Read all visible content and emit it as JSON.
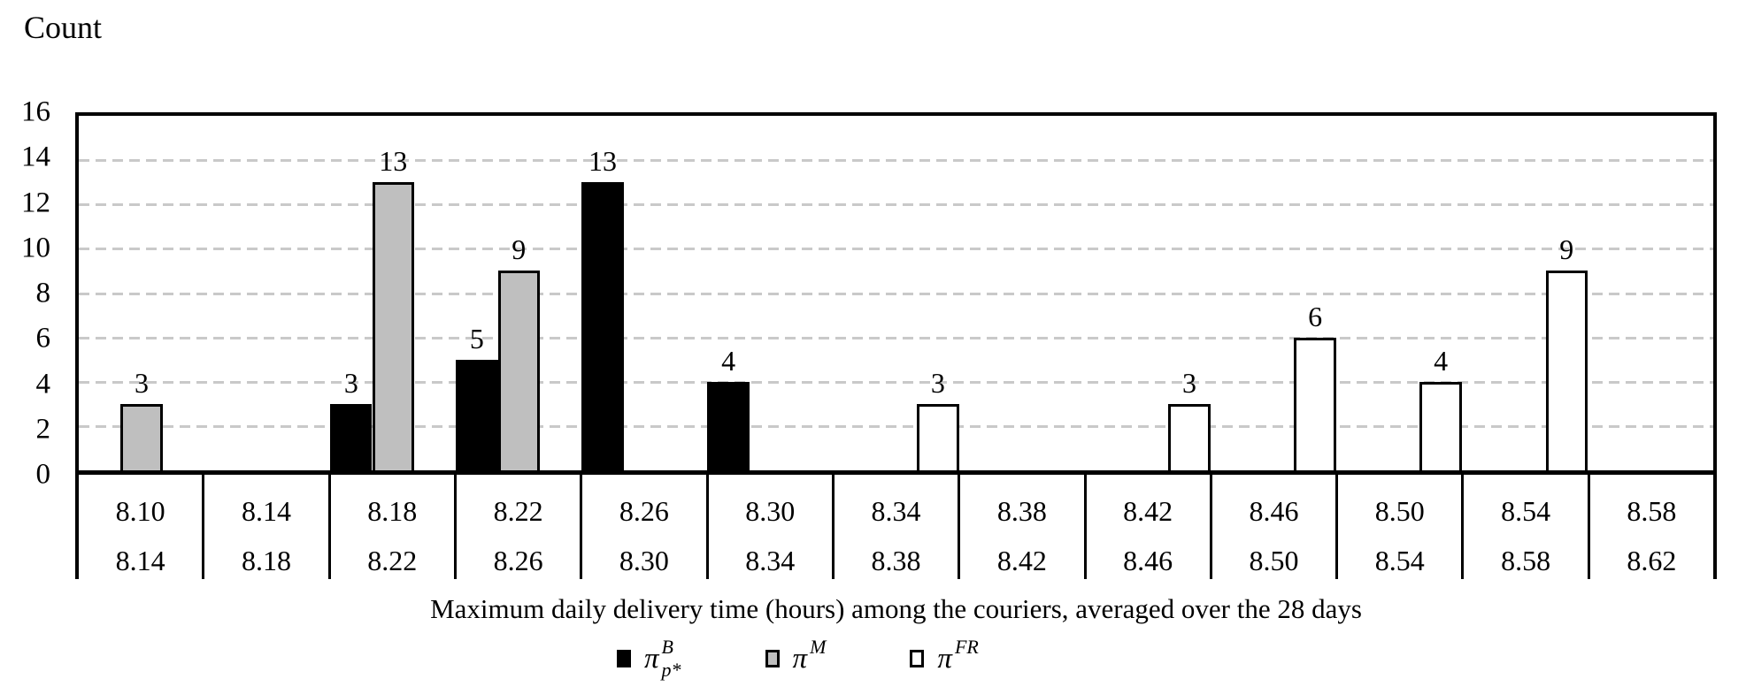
{
  "chart_data": {
    "type": "bar",
    "subtype": "clustered-histogram",
    "ylabel": "Count",
    "xlabel": "Maximum daily delivery time (hours) among the couriers, averaged over the 28 days",
    "ylim": [
      0,
      16
    ],
    "y_ticks": [
      0,
      2,
      4,
      6,
      8,
      10,
      12,
      14,
      16
    ],
    "grid": "horizontal-dashed",
    "legend_position": "bottom",
    "bins": [
      {
        "lower": "8.10",
        "upper": "8.14"
      },
      {
        "lower": "8.14",
        "upper": "8.18"
      },
      {
        "lower": "8.18",
        "upper": "8.22"
      },
      {
        "lower": "8.22",
        "upper": "8.26"
      },
      {
        "lower": "8.26",
        "upper": "8.30"
      },
      {
        "lower": "8.30",
        "upper": "8.34"
      },
      {
        "lower": "8.34",
        "upper": "8.38"
      },
      {
        "lower": "8.38",
        "upper": "8.42"
      },
      {
        "lower": "8.42",
        "upper": "8.46"
      },
      {
        "lower": "8.46",
        "upper": "8.50"
      },
      {
        "lower": "8.50",
        "upper": "8.54"
      },
      {
        "lower": "8.54",
        "upper": "8.58"
      },
      {
        "lower": "8.58",
        "upper": "8.62"
      }
    ],
    "series": [
      {
        "key": "pi-b",
        "name": "π_p*^B",
        "legend": {
          "symbol": "π",
          "sup": "B",
          "sub": "p*"
        },
        "fill": "#000000",
        "style": "s-black",
        "values": [
          null,
          null,
          3,
          5,
          13,
          4,
          null,
          null,
          null,
          null,
          null,
          null,
          null
        ]
      },
      {
        "key": "pi-m",
        "name": "π^M",
        "legend": {
          "symbol": "π",
          "sup": "M",
          "sub": ""
        },
        "fill": "#bfbfbf",
        "style": "s-gray",
        "values": [
          3,
          null,
          13,
          9,
          null,
          null,
          null,
          null,
          null,
          null,
          null,
          null,
          null
        ]
      },
      {
        "key": "pi-fr",
        "name": "π^FR",
        "legend": {
          "symbol": "π",
          "sup": "FR",
          "sub": ""
        },
        "fill": "#ffffff",
        "style": "s-white",
        "values": [
          null,
          null,
          null,
          null,
          null,
          null,
          3,
          null,
          3,
          6,
          4,
          9,
          null
        ]
      }
    ]
  },
  "colors": {
    "axis": "#000000",
    "grid": "#c9c9c9",
    "bar_black": "#000000",
    "bar_gray": "#bfbfbf",
    "bar_white": "#ffffff"
  }
}
